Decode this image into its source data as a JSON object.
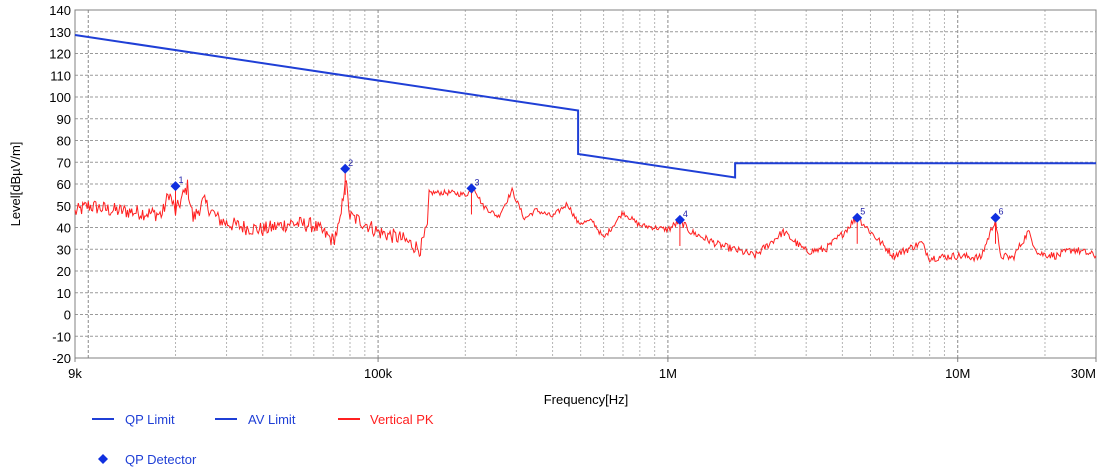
{
  "chart_data": {
    "type": "line",
    "title": "",
    "xlabel": "Frequency[Hz]",
    "ylabel": "Level[dBµV/m]",
    "xscale": "log",
    "xlim": [
      9000,
      30000000
    ],
    "ylim": [
      -20,
      140
    ],
    "grid": true,
    "x_tick_labels": [
      {
        "value": 9000,
        "label": "9k"
      },
      {
        "value": 100000,
        "label": "100k"
      },
      {
        "value": 1000000,
        "label": "1M"
      },
      {
        "value": 10000000,
        "label": "10M"
      },
      {
        "value": 30000000,
        "label": "30M"
      }
    ],
    "y_ticks": [
      -20,
      -10,
      0,
      10,
      20,
      30,
      40,
      50,
      60,
      70,
      80,
      90,
      100,
      110,
      120,
      130,
      140
    ],
    "legend": {
      "position": "bottom-left",
      "entries": [
        {
          "name": "QP Limit",
          "color": "#1f3fd6",
          "kind": "line"
        },
        {
          "name": "AV Limit",
          "color": "#1f3fd6",
          "kind": "line"
        },
        {
          "name": "Vertical PK",
          "color": "#ff2020",
          "kind": "line"
        },
        {
          "name": "QP Detector",
          "color": "#1030e0",
          "kind": "diamond"
        }
      ]
    },
    "series": [
      {
        "name": "QP Limit",
        "color": "#1f3fd6",
        "points": [
          [
            9000,
            128.5
          ],
          [
            490000,
            93.8
          ],
          [
            490000,
            73.8
          ],
          [
            1705000,
            63.0
          ],
          [
            1705000,
            69.5
          ],
          [
            30000000,
            69.5
          ]
        ]
      },
      {
        "name": "Vertical PK",
        "color": "#ff2020",
        "key_points": [
          [
            9000,
            47
          ],
          [
            10000,
            50
          ],
          [
            12000,
            48
          ],
          [
            15000,
            47
          ],
          [
            18000,
            46
          ],
          [
            19000,
            56
          ],
          [
            20000,
            47
          ],
          [
            22000,
            59
          ],
          [
            23000,
            44
          ],
          [
            25000,
            52
          ],
          [
            28000,
            44
          ],
          [
            30000,
            42
          ],
          [
            35000,
            40
          ],
          [
            40000,
            39
          ],
          [
            50000,
            42
          ],
          [
            60000,
            41
          ],
          [
            70000,
            34
          ],
          [
            74000,
            42
          ],
          [
            77000,
            63
          ],
          [
            80000,
            45
          ],
          [
            90000,
            42
          ],
          [
            100000,
            38
          ],
          [
            120000,
            35
          ],
          [
            140000,
            30
          ],
          [
            148000,
            40
          ],
          [
            150000,
            56
          ],
          [
            180000,
            56
          ],
          [
            200000,
            55
          ],
          [
            215000,
            58
          ],
          [
            230000,
            50
          ],
          [
            260000,
            45
          ],
          [
            290000,
            57
          ],
          [
            320000,
            44
          ],
          [
            350000,
            48
          ],
          [
            400000,
            45
          ],
          [
            450000,
            51
          ],
          [
            490000,
            42
          ],
          [
            550000,
            43
          ],
          [
            600000,
            35
          ],
          [
            700000,
            47
          ],
          [
            800000,
            41
          ],
          [
            900000,
            40
          ],
          [
            1000000,
            39
          ],
          [
            1100000,
            43
          ],
          [
            1200000,
            38
          ],
          [
            1500000,
            32
          ],
          [
            2000000,
            27
          ],
          [
            2500000,
            38
          ],
          [
            3000000,
            29
          ],
          [
            3500000,
            30
          ],
          [
            4000000,
            37
          ],
          [
            4500000,
            45
          ],
          [
            5000000,
            38
          ],
          [
            6000000,
            27
          ],
          [
            7500000,
            33
          ],
          [
            8000000,
            26
          ],
          [
            10000000,
            27
          ],
          [
            12000000,
            26
          ],
          [
            13500000,
            44
          ],
          [
            14000000,
            27
          ],
          [
            15500000,
            26
          ],
          [
            17500000,
            38
          ],
          [
            19000000,
            28
          ],
          [
            22000000,
            27
          ],
          [
            25000000,
            30
          ],
          [
            30000000,
            27
          ]
        ]
      }
    ],
    "markers": [
      {
        "label": "1",
        "x": 20000,
        "y": 59
      },
      {
        "label": "2",
        "x": 77000,
        "y": 67
      },
      {
        "label": "3",
        "x": 210000,
        "y": 58
      },
      {
        "label": "4",
        "x": 1100000,
        "y": 43.5
      },
      {
        "label": "5",
        "x": 4500000,
        "y": 44.5
      },
      {
        "label": "6",
        "x": 13500000,
        "y": 44.5
      }
    ]
  }
}
